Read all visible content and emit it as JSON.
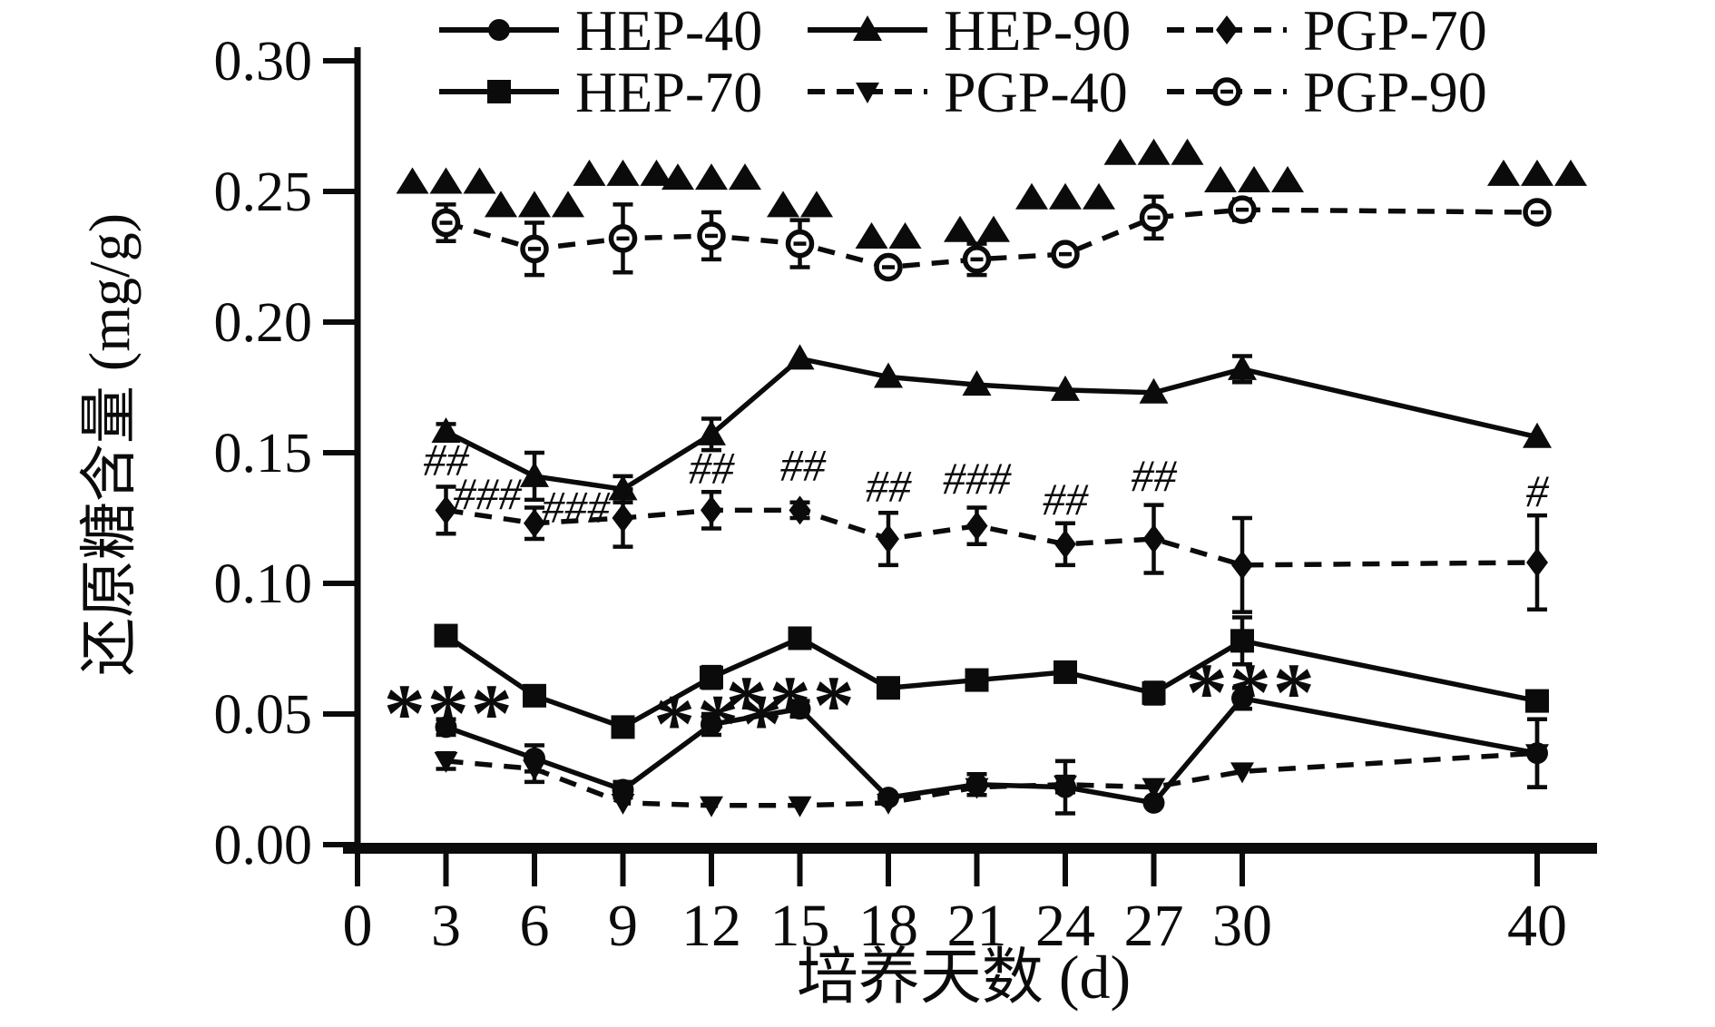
{
  "figure": {
    "background": "#ffffff",
    "ink_color": "#0b0b0b",
    "description": "Line chart of reducing sugar content over culture days for six polysaccharide samples"
  },
  "legend": {
    "entries": [
      {
        "label": "HEP-40",
        "line": "solid",
        "marker": "circle"
      },
      {
        "label": "HEP-90",
        "line": "solid",
        "marker": "triangle-up"
      },
      {
        "label": "PGP-70",
        "line": "dashed",
        "marker": "diamond"
      },
      {
        "label": "HEP-70",
        "line": "solid",
        "marker": "square"
      },
      {
        "label": "PGP-40",
        "line": "dashed",
        "marker": "triangle-down"
      },
      {
        "label": "PGP-90",
        "line": "dashed",
        "marker": "circle-open"
      }
    ]
  },
  "axes": {
    "x": {
      "label": "培养天数 (d)",
      "tick_days": [
        0,
        3,
        6,
        9,
        12,
        15,
        18,
        21,
        24,
        27,
        30,
        40
      ]
    },
    "y": {
      "label": "还原糖含量 (mg/g)",
      "tick_labels": [
        "0.00",
        "0.05",
        "0.10",
        "0.15",
        "0.20",
        "0.25",
        "0.30"
      ]
    }
  },
  "chart_data": {
    "type": "line",
    "title": "",
    "xlabel": "培养天数 (d)",
    "ylabel": "还原糖含量 (mg/g)",
    "x": [
      3,
      6,
      9,
      12,
      15,
      18,
      21,
      24,
      27,
      30,
      40
    ],
    "xlim": [
      0,
      42
    ],
    "ylim": [
      0,
      0.3
    ],
    "grid": false,
    "legend_position": "top",
    "series": [
      {
        "name": "HEP-40",
        "line": "solid",
        "marker": "circle",
        "values": [
          0.045,
          0.033,
          0.021,
          0.046,
          0.052,
          0.018,
          0.023,
          0.022,
          0.016,
          0.056,
          0.035
        ],
        "errors": [
          0.003,
          0.005,
          0.003,
          0.004,
          0.003,
          0.002,
          0.004,
          0.01,
          0.002,
          0.004,
          0.013
        ]
      },
      {
        "name": "HEP-70",
        "line": "solid",
        "marker": "square",
        "values": [
          0.08,
          0.057,
          0.045,
          0.064,
          0.079,
          0.06,
          0.063,
          0.066,
          0.058,
          0.078,
          0.055
        ],
        "errors": [
          0.002,
          0.002,
          0.002,
          0.004,
          0.002,
          0.002,
          0.002,
          0.002,
          0.004,
          0.009,
          0.002
        ]
      },
      {
        "name": "HEP-90",
        "line": "solid",
        "marker": "triangle-up",
        "values": [
          0.158,
          0.141,
          0.136,
          0.157,
          0.186,
          0.179,
          0.176,
          0.174,
          0.173,
          0.182,
          0.156
        ],
        "errors": [
          0.003,
          0.009,
          0.005,
          0.006,
          0.002,
          0.002,
          0.002,
          0.002,
          0.002,
          0.005,
          0.002
        ]
      },
      {
        "name": "PGP-40",
        "line": "dashed",
        "marker": "triangle-down",
        "values": [
          0.032,
          0.029,
          0.016,
          0.015,
          0.015,
          0.016,
          0.022,
          0.023,
          0.022,
          0.028,
          0.035
        ],
        "errors": [
          0.003,
          0.005,
          0.002,
          0.002,
          0.002,
          0.002,
          0.002,
          0.003,
          0.002,
          0.002,
          0.013
        ]
      },
      {
        "name": "PGP-70",
        "line": "dashed",
        "marker": "diamond",
        "values": [
          0.128,
          0.123,
          0.125,
          0.128,
          0.128,
          0.117,
          0.122,
          0.115,
          0.117,
          0.107,
          0.108
        ],
        "errors": [
          0.009,
          0.006,
          0.011,
          0.007,
          0.003,
          0.01,
          0.007,
          0.008,
          0.013,
          0.018,
          0.018
        ]
      },
      {
        "name": "PGP-90",
        "line": "dashed",
        "marker": "circle-open",
        "values": [
          0.238,
          0.228,
          0.232,
          0.233,
          0.23,
          0.221,
          0.224,
          0.226,
          0.24,
          0.243,
          0.242
        ],
        "errors": [
          0.007,
          0.01,
          0.013,
          0.009,
          0.009,
          0.003,
          0.006,
          0.002,
          0.008,
          0.004,
          0.002
        ]
      }
    ],
    "annotations": {
      "star_marks": [
        {
          "day": 3.1,
          "text": "***",
          "y": 0.057
        },
        {
          "day": 12.25,
          "text": "***",
          "y": 0.053
        },
        {
          "day": 14.7,
          "text": "***",
          "y": 0.06
        },
        {
          "day": 30.3,
          "text": "***",
          "y": 0.065
        }
      ],
      "hash_marks": [
        {
          "day": 3.0,
          "text": "##",
          "y": 0.147
        },
        {
          "day": 4.4,
          "text": "###",
          "y": 0.134
        },
        {
          "day": 7.4,
          "text": "###",
          "y": 0.129
        },
        {
          "day": 12.0,
          "text": "##",
          "y": 0.144
        },
        {
          "day": 15.1,
          "text": "##",
          "y": 0.145
        },
        {
          "day": 18.0,
          "text": "##",
          "y": 0.137
        },
        {
          "day": 21.0,
          "text": "###",
          "y": 0.14
        },
        {
          "day": 24.0,
          "text": "##",
          "y": 0.132
        },
        {
          "day": 27.0,
          "text": "##",
          "y": 0.141
        },
        {
          "day": 40.0,
          "text": "#",
          "y": 0.135
        }
      ],
      "triangle_clusters": [
        {
          "day": 3,
          "count": 3,
          "y": 0.254
        },
        {
          "day": 6,
          "count": 3,
          "y": 0.245
        },
        {
          "day": 9,
          "count": 3,
          "y": 0.257
        },
        {
          "day": 12,
          "count": 3,
          "y": 0.2555
        },
        {
          "day": 15,
          "count": 2,
          "y": 0.245
        },
        {
          "day": 18,
          "count": 2,
          "y": 0.233
        },
        {
          "day": 21,
          "count": 2,
          "y": 0.2355
        },
        {
          "day": 24,
          "count": 3,
          "y": 0.248
        },
        {
          "day": 27,
          "count": 3,
          "y": 0.265
        },
        {
          "day": 30.4,
          "count": 3,
          "y": 0.2545
        },
        {
          "day": 40,
          "count": 3,
          "y": 0.257
        }
      ]
    }
  }
}
